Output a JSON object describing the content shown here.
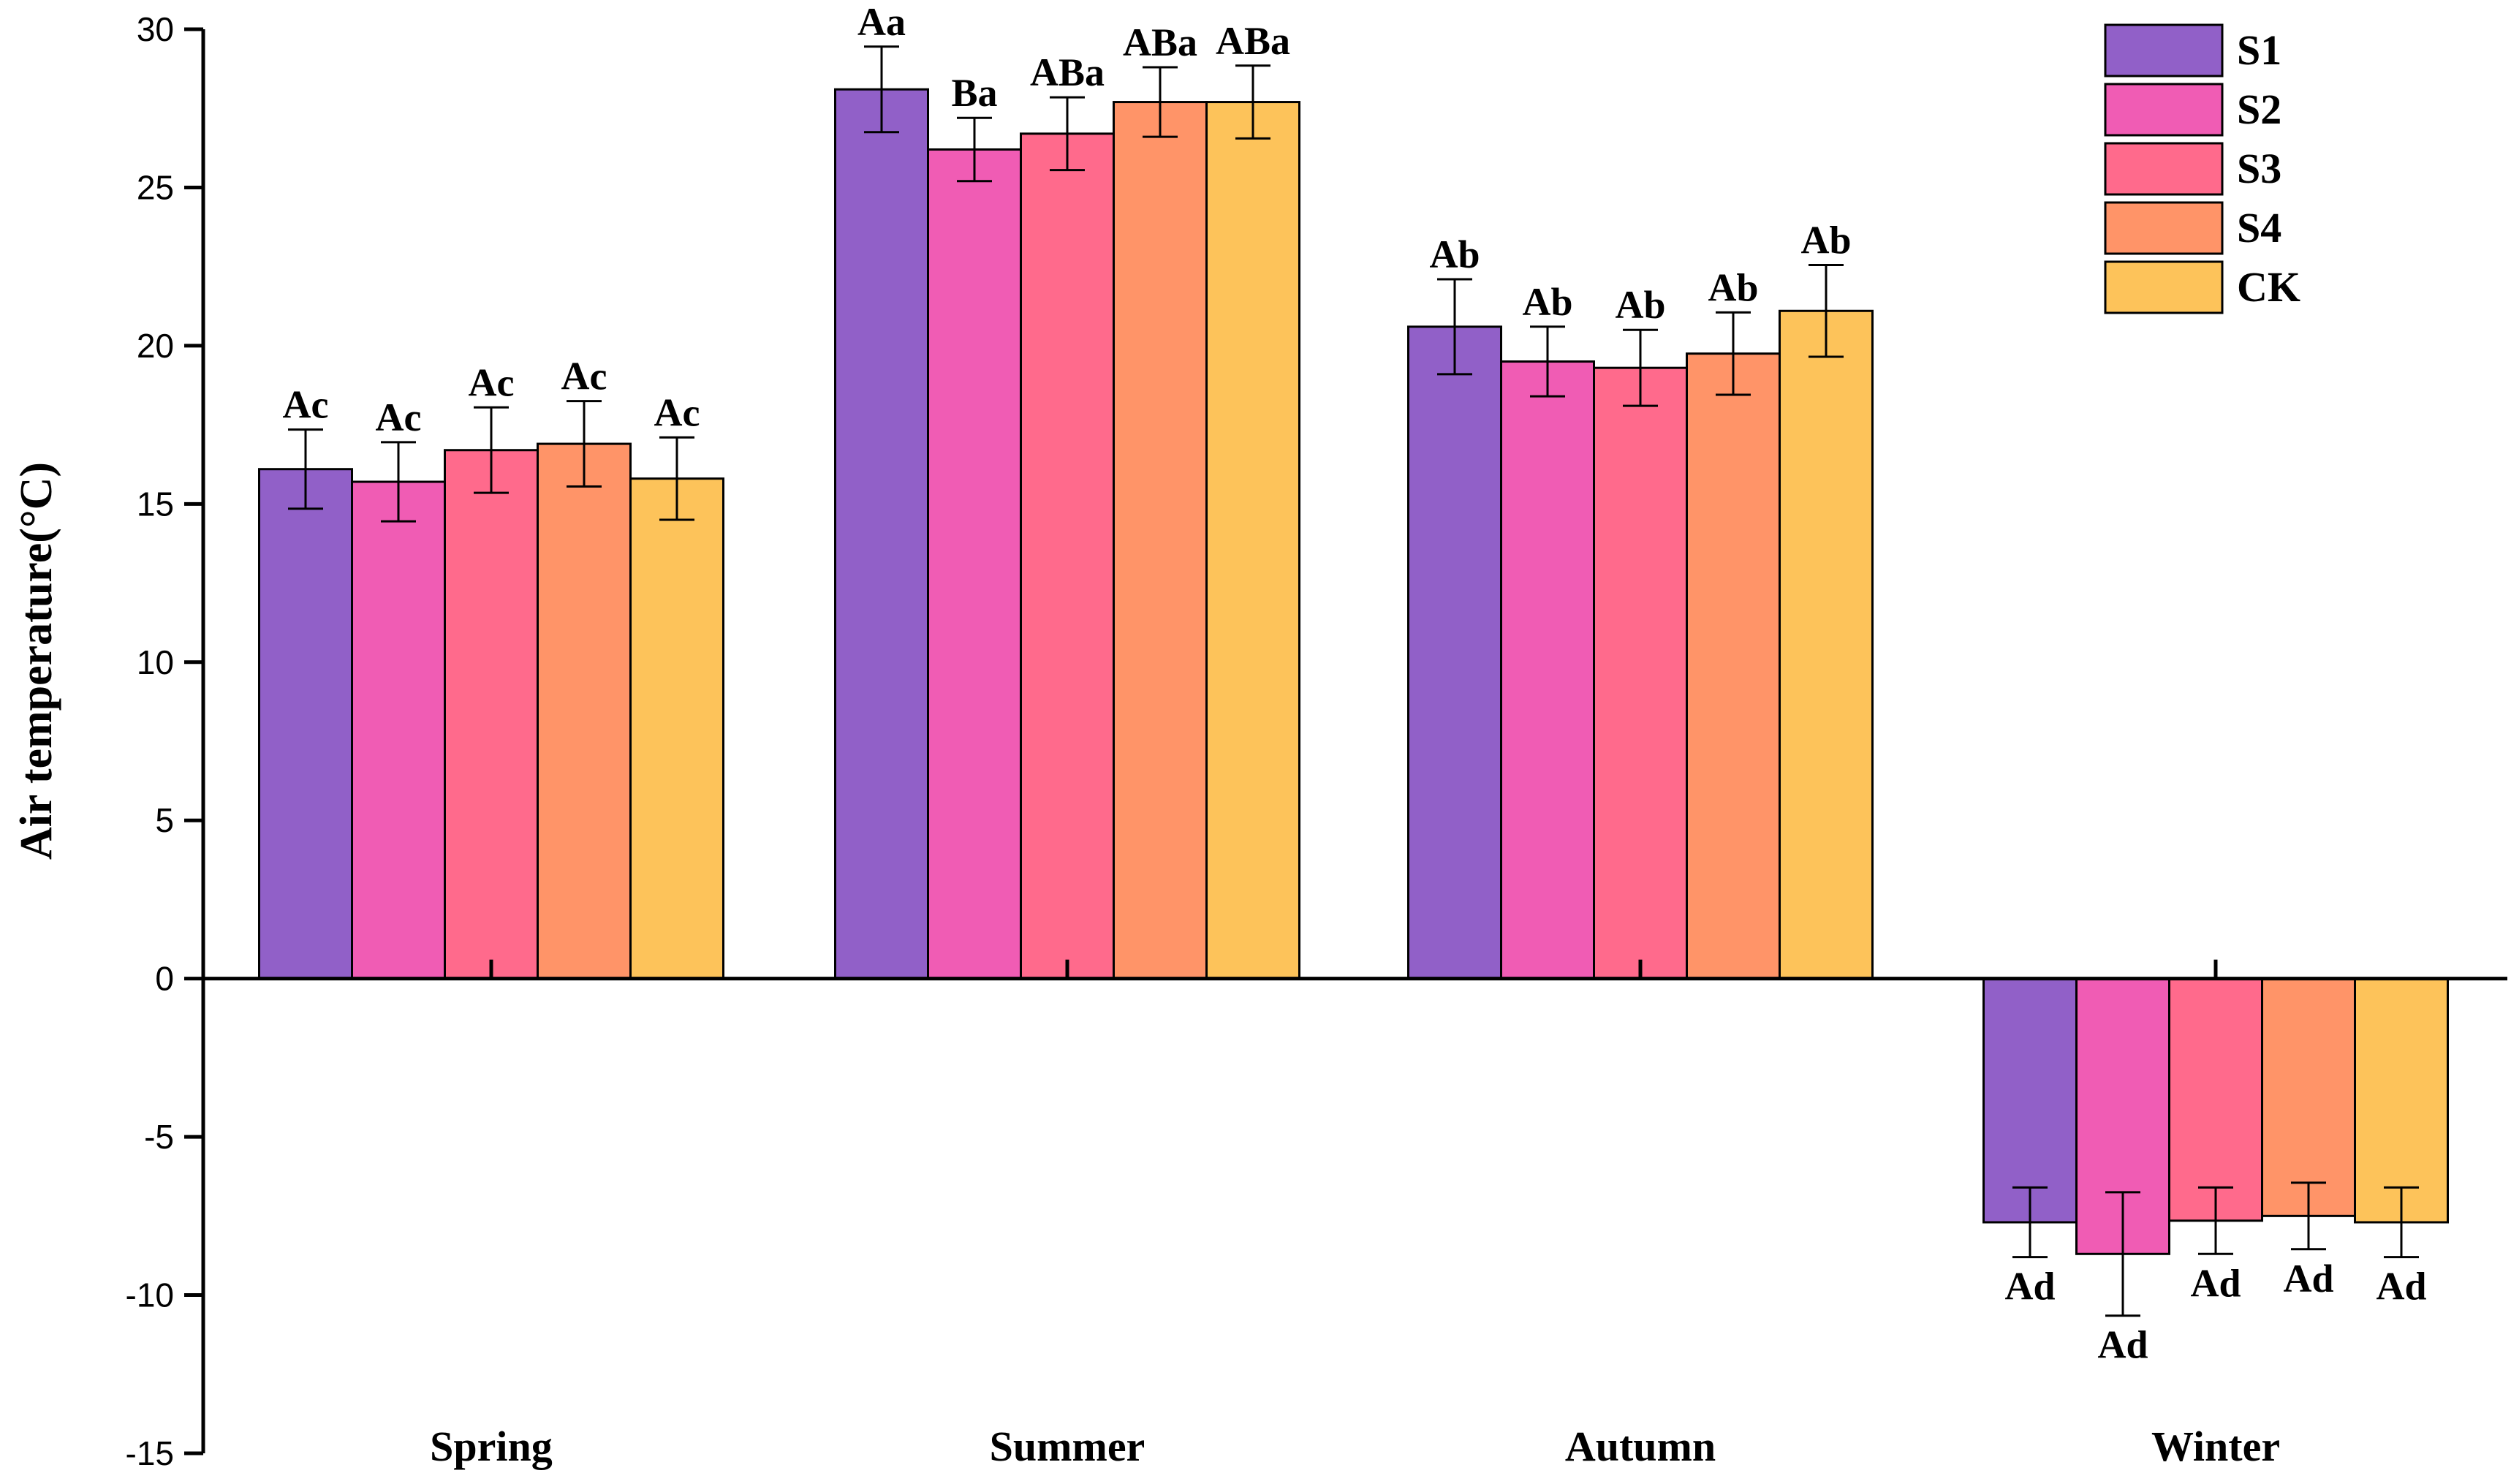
{
  "chart_data": {
    "type": "bar",
    "title": "",
    "xlabel": "",
    "ylabel": "Air temperature(°C)",
    "ylim": [
      -15,
      30
    ],
    "yticks": [
      30,
      25,
      20,
      15,
      10,
      5,
      0,
      -5,
      -10,
      -15
    ],
    "categories": [
      "Spring",
      "Summer",
      "Autumn",
      "Winter"
    ],
    "legend_position": "top-right",
    "series": [
      {
        "name": "S1",
        "color": "#9160C8",
        "values": [
          16.1,
          28.1,
          20.6,
          -7.7
        ],
        "errors": [
          1.25,
          1.35,
          1.5,
          1.1
        ],
        "labels": [
          "Ac",
          "Aa",
          "Ab",
          "Ad"
        ]
      },
      {
        "name": "S2",
        "color": "#F05CB4",
        "values": [
          15.7,
          26.2,
          19.5,
          -8.7
        ],
        "errors": [
          1.25,
          1.0,
          1.1,
          1.95
        ],
        "labels": [
          "Ac",
          "Ba",
          "Ab",
          "Ad"
        ]
      },
      {
        "name": "S3",
        "color": "#FF6A8C",
        "values": [
          16.7,
          26.7,
          19.3,
          -7.65
        ],
        "errors": [
          1.35,
          1.15,
          1.2,
          1.05
        ],
        "labels": [
          "Ac",
          "ABa",
          "Ab",
          "Ad"
        ]
      },
      {
        "name": "S4",
        "color": "#FF9468",
        "values": [
          16.9,
          27.7,
          19.75,
          -7.5
        ],
        "errors": [
          1.35,
          1.1,
          1.3,
          1.05
        ],
        "labels": [
          "Ac",
          "ABa",
          "Ab",
          "Ad"
        ]
      },
      {
        "name": "CK",
        "color": "#FDC35A",
        "values": [
          15.8,
          27.7,
          21.1,
          -7.7
        ],
        "errors": [
          1.3,
          1.15,
          1.45,
          1.1
        ],
        "labels": [
          "Ac",
          "ABa",
          "Ab",
          "Ad"
        ]
      }
    ]
  }
}
